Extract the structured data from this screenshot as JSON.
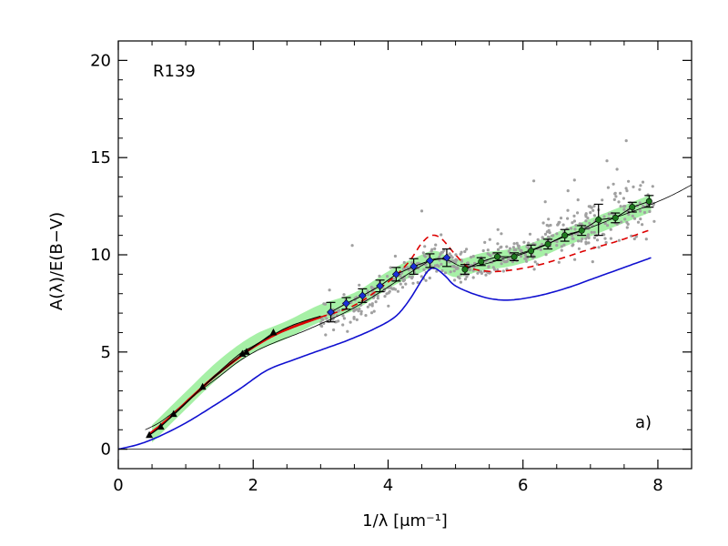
{
  "chart_data": {
    "type": "scatter",
    "title": "",
    "xlabel": "1/λ [μm⁻¹]",
    "ylabel": "A(λ)/E(B−V)",
    "xlim": [
      0,
      8.5
    ],
    "ylim": [
      -1,
      21
    ],
    "x_ticks": [
      "0",
      "2",
      "4",
      "6",
      "8"
    ],
    "y_ticks": [
      "0",
      "5",
      "10",
      "15",
      "20"
    ],
    "annotations": {
      "object": "R139",
      "panel": "a)"
    },
    "colors": {
      "blue_curve": "#1010d0",
      "red_curve": "#dd0000",
      "green_band": "#a6f0a6",
      "scatter": "#a0a0a0",
      "thin_line": "#000000"
    },
    "series": [
      {
        "style": "blue-solid",
        "x": [
          0.0,
          0.3,
          0.6,
          1.0,
          1.4,
          1.8,
          2.2,
          2.6,
          3.0,
          3.4,
          3.8,
          4.1,
          4.3,
          4.5,
          4.6,
          4.7,
          4.85,
          5.0,
          5.3,
          5.6,
          5.9,
          6.3,
          6.7,
          7.1,
          7.5,
          7.9
        ],
        "y": [
          0.0,
          0.25,
          0.65,
          1.35,
          2.2,
          3.1,
          4.05,
          4.6,
          5.1,
          5.6,
          6.2,
          6.8,
          7.6,
          8.7,
          9.2,
          9.3,
          8.9,
          8.4,
          7.95,
          7.7,
          7.7,
          7.95,
          8.35,
          8.85,
          9.35,
          9.85
        ]
      },
      {
        "style": "red-dashed",
        "x": [
          3.0,
          3.5,
          4.0,
          4.3,
          4.5,
          4.65,
          4.8,
          5.0,
          5.2,
          5.5,
          5.8,
          6.2,
          6.6,
          7.0,
          7.4,
          7.9
        ],
        "y": [
          6.8,
          7.4,
          8.6,
          9.6,
          10.6,
          11.0,
          10.8,
          10.0,
          9.35,
          9.15,
          9.2,
          9.45,
          9.85,
          10.3,
          10.7,
          11.3
        ]
      },
      {
        "style": "red-solid",
        "x": [
          0.45,
          0.6,
          0.8,
          1.0,
          1.25,
          1.5,
          1.8,
          2.0,
          2.3,
          2.6,
          3.0
        ],
        "y": [
          0.75,
          1.15,
          1.75,
          2.4,
          3.2,
          3.95,
          4.75,
          5.25,
          5.85,
          6.3,
          6.8
        ]
      },
      {
        "style": "black-thin",
        "x": [
          0.4,
          0.6,
          0.8,
          1.0,
          1.25,
          1.5,
          1.8,
          2.1,
          2.4,
          2.7,
          3.0,
          3.4,
          3.8,
          4.2,
          4.5,
          4.7,
          4.9,
          5.1,
          5.4,
          5.8,
          6.2,
          6.6,
          7.0,
          7.4,
          7.8,
          8.2,
          8.5
        ],
        "y": [
          1.0,
          1.35,
          1.85,
          2.4,
          3.1,
          3.75,
          4.55,
          5.15,
          5.6,
          6.0,
          6.45,
          7.1,
          7.9,
          8.8,
          9.45,
          9.8,
          9.7,
          9.4,
          9.5,
          9.9,
          10.35,
          10.9,
          11.4,
          11.95,
          12.45,
          13.05,
          13.6
        ]
      },
      {
        "style": "black-medium",
        "x": [
          0.45,
          0.6,
          0.8,
          1.0,
          1.25,
          1.5,
          1.8,
          2.0,
          2.3,
          2.6,
          3.0
        ],
        "y": [
          0.7,
          1.1,
          1.7,
          2.35,
          3.2,
          4.0,
          4.9,
          5.3,
          5.9,
          6.4,
          6.85
        ]
      },
      {
        "style": "green-band",
        "x": [
          0.5,
          1.0,
          1.5,
          2.0,
          2.5,
          3.0,
          3.5,
          4.0,
          4.4,
          4.7,
          5.0,
          5.4,
          5.8,
          6.2,
          6.6,
          7.0,
          7.4,
          7.9
        ],
        "y": [
          0.8,
          2.5,
          4.15,
          5.4,
          6.15,
          7.0,
          7.6,
          8.7,
          9.4,
          9.75,
          9.3,
          9.65,
          9.85,
          10.25,
          10.85,
          11.4,
          11.95,
          12.65
        ],
        "half_width": 0.45
      },
      {
        "style": "photometry-triangles",
        "x": [
          0.46,
          0.63,
          0.82,
          1.25,
          1.84,
          1.9,
          2.3
        ],
        "y": [
          0.72,
          1.15,
          1.8,
          3.2,
          4.9,
          5.0,
          6.0
        ]
      },
      {
        "style": "blue-diamonds-errorbars",
        "x": [
          3.15,
          3.38,
          3.62,
          3.88,
          4.12,
          4.38,
          4.62,
          4.87
        ],
        "y": [
          7.05,
          7.5,
          7.9,
          8.4,
          9.0,
          9.4,
          9.7,
          9.85
        ],
        "err": [
          0.5,
          0.3,
          0.35,
          0.3,
          0.35,
          0.4,
          0.35,
          0.45
        ]
      },
      {
        "style": "green-dots-errorbars",
        "x": [
          5.14,
          5.38,
          5.62,
          5.87,
          6.12,
          6.37,
          6.62,
          6.87,
          7.12,
          7.37,
          7.62,
          7.87
        ],
        "y": [
          9.25,
          9.65,
          9.9,
          9.9,
          10.2,
          10.55,
          11.0,
          11.25,
          11.8,
          11.9,
          12.45,
          12.75
        ],
        "err": [
          0.25,
          0.2,
          0.2,
          0.2,
          0.3,
          0.25,
          0.3,
          0.25,
          0.8,
          0.25,
          0.25,
          0.3
        ]
      }
    ]
  }
}
